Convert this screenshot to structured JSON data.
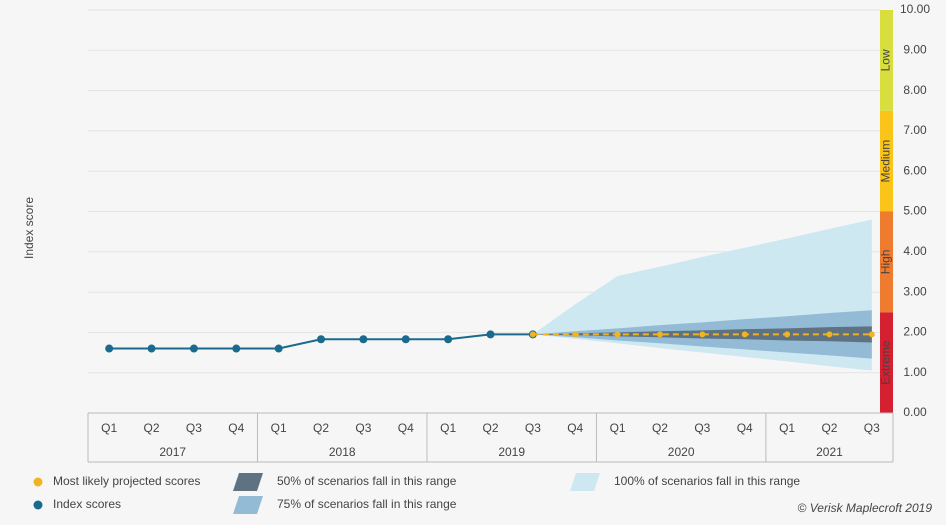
{
  "chart_data": {
    "type": "line",
    "y_label": "Index score",
    "groups": [
      {
        "label": "2017",
        "categories": [
          "Q1",
          "Q2",
          "Q3",
          "Q4"
        ]
      },
      {
        "label": "2018",
        "categories": [
          "Q1",
          "Q2",
          "Q3",
          "Q4"
        ]
      },
      {
        "label": "2019",
        "categories": [
          "Q1",
          "Q2",
          "Q3",
          "Q4"
        ]
      },
      {
        "label": "2020",
        "categories": [
          "Q1",
          "Q2",
          "Q3",
          "Q4"
        ]
      },
      {
        "label": "2021",
        "categories": [
          "Q1",
          "Q2",
          "Q3"
        ]
      }
    ],
    "ylim": [
      0,
      10
    ],
    "yticks": [
      {
        "value": 0,
        "label": "0.00"
      },
      {
        "value": 1,
        "label": "1.00"
      },
      {
        "value": 2,
        "label": "2.00"
      },
      {
        "value": 3,
        "label": "3.00"
      },
      {
        "value": 4,
        "label": "4.00"
      },
      {
        "value": 5,
        "label": "5.00"
      },
      {
        "value": 6,
        "label": "6.00"
      },
      {
        "value": 7,
        "label": "7.00"
      },
      {
        "value": 8,
        "label": "8.00"
      },
      {
        "value": 9,
        "label": "9.00"
      },
      {
        "value": 10,
        "label": "10.00"
      }
    ],
    "grid": true,
    "zones": [
      {
        "label": "Extreme",
        "from": 0,
        "to": 2.5,
        "color": "#d42030"
      },
      {
        "label": "High",
        "from": 2.5,
        "to": 5,
        "color": "#ef7b2e"
      },
      {
        "label": "Medium",
        "from": 5,
        "to": 7.5,
        "color": "#fbc419"
      },
      {
        "label": "Low",
        "from": 7.5,
        "to": 10,
        "color": "#d8de3e"
      }
    ],
    "ranges": [
      {
        "name": "100% of scenarios fall in this range",
        "color": "#cde8f0",
        "low": [
          null,
          null,
          null,
          null,
          null,
          null,
          null,
          null,
          null,
          null,
          1.95,
          1.84,
          1.73,
          1.61,
          1.5,
          1.39,
          1.28,
          1.16,
          1.05
        ],
        "high": [
          null,
          null,
          null,
          null,
          null,
          null,
          null,
          null,
          null,
          null,
          1.95,
          2.7,
          3.4,
          3.63,
          3.87,
          4.1,
          4.33,
          4.57,
          4.8
        ]
      },
      {
        "name": "75% of scenarios fall in this range",
        "color": "#93bbd6",
        "low": [
          null,
          null,
          null,
          null,
          null,
          null,
          null,
          null,
          null,
          null,
          1.95,
          1.88,
          1.8,
          1.73,
          1.65,
          1.58,
          1.5,
          1.43,
          1.35
        ],
        "high": [
          null,
          null,
          null,
          null,
          null,
          null,
          null,
          null,
          null,
          null,
          1.95,
          2.03,
          2.1,
          2.18,
          2.25,
          2.33,
          2.4,
          2.48,
          2.55
        ]
      },
      {
        "name": "50% of scenarios fall in this range",
        "color": "#5e7282",
        "low": [
          null,
          null,
          null,
          null,
          null,
          null,
          null,
          null,
          null,
          null,
          1.95,
          1.93,
          1.9,
          1.88,
          1.85,
          1.83,
          1.8,
          1.78,
          1.75
        ],
        "high": [
          null,
          null,
          null,
          null,
          null,
          null,
          null,
          null,
          null,
          null,
          1.95,
          1.98,
          2,
          2.03,
          2.05,
          2.08,
          2.1,
          2.13,
          2.15
        ]
      }
    ],
    "series": [
      {
        "name": "Index scores",
        "color": "#1a6a8e",
        "values": [
          1.6,
          1.6,
          1.6,
          1.6,
          1.6,
          1.83,
          1.83,
          1.83,
          1.83,
          1.95,
          1.95,
          null,
          null,
          null,
          null,
          null,
          null,
          null,
          null
        ]
      },
      {
        "name": "Most likely projected scores",
        "color": "#f0b323",
        "dashed": true,
        "values": [
          null,
          null,
          null,
          null,
          null,
          null,
          null,
          null,
          null,
          null,
          1.95,
          1.95,
          1.95,
          1.95,
          1.95,
          1.95,
          1.95,
          1.95,
          1.95
        ]
      }
    ],
    "source": "© Verisk Maplecroft 2019"
  }
}
